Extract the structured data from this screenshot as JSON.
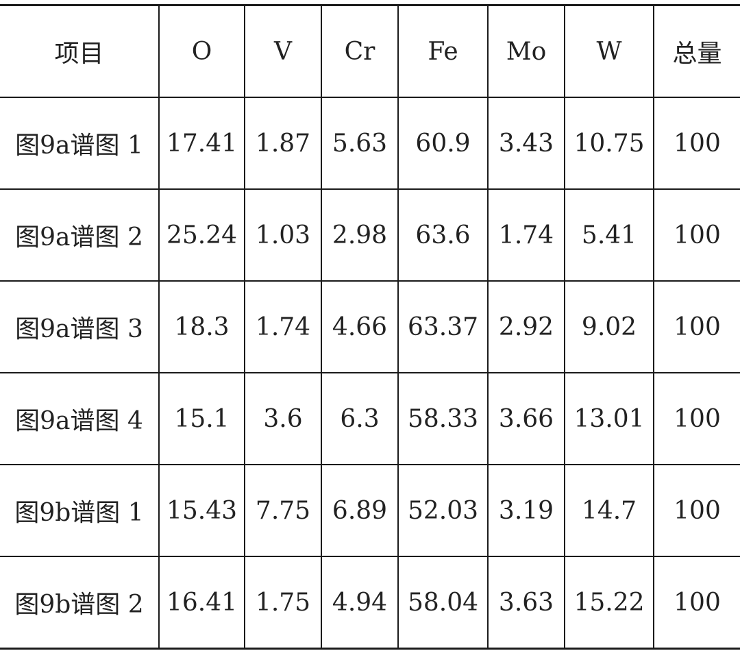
{
  "table": {
    "headers": [
      "项目",
      "O",
      "V",
      "Cr",
      "Fe",
      "Mo",
      "W",
      "总量"
    ],
    "rows": [
      [
        "图9a谱图 1",
        "17.41",
        "1.87",
        "5.63",
        "60.9",
        "3.43",
        "10.75",
        "100"
      ],
      [
        "图9a谱图 2",
        "25.24",
        "1.03",
        "2.98",
        "63.6",
        "1.74",
        "5.41",
        "100"
      ],
      [
        "图9a谱图 3",
        "18.3",
        "1.74",
        "4.66",
        "63.37",
        "2.92",
        "9.02",
        "100"
      ],
      [
        "图9a谱图 4",
        "15.1",
        "3.6",
        "6.3",
        "58.33",
        "3.66",
        "13.01",
        "100"
      ],
      [
        "图9b谱图 1",
        "15.43",
        "7.75",
        "6.89",
        "52.03",
        "3.19",
        "14.7",
        "100"
      ],
      [
        "图9b谱图 2",
        "16.41",
        "1.75",
        "4.94",
        "58.04",
        "3.63",
        "15.22",
        "100"
      ]
    ]
  }
}
